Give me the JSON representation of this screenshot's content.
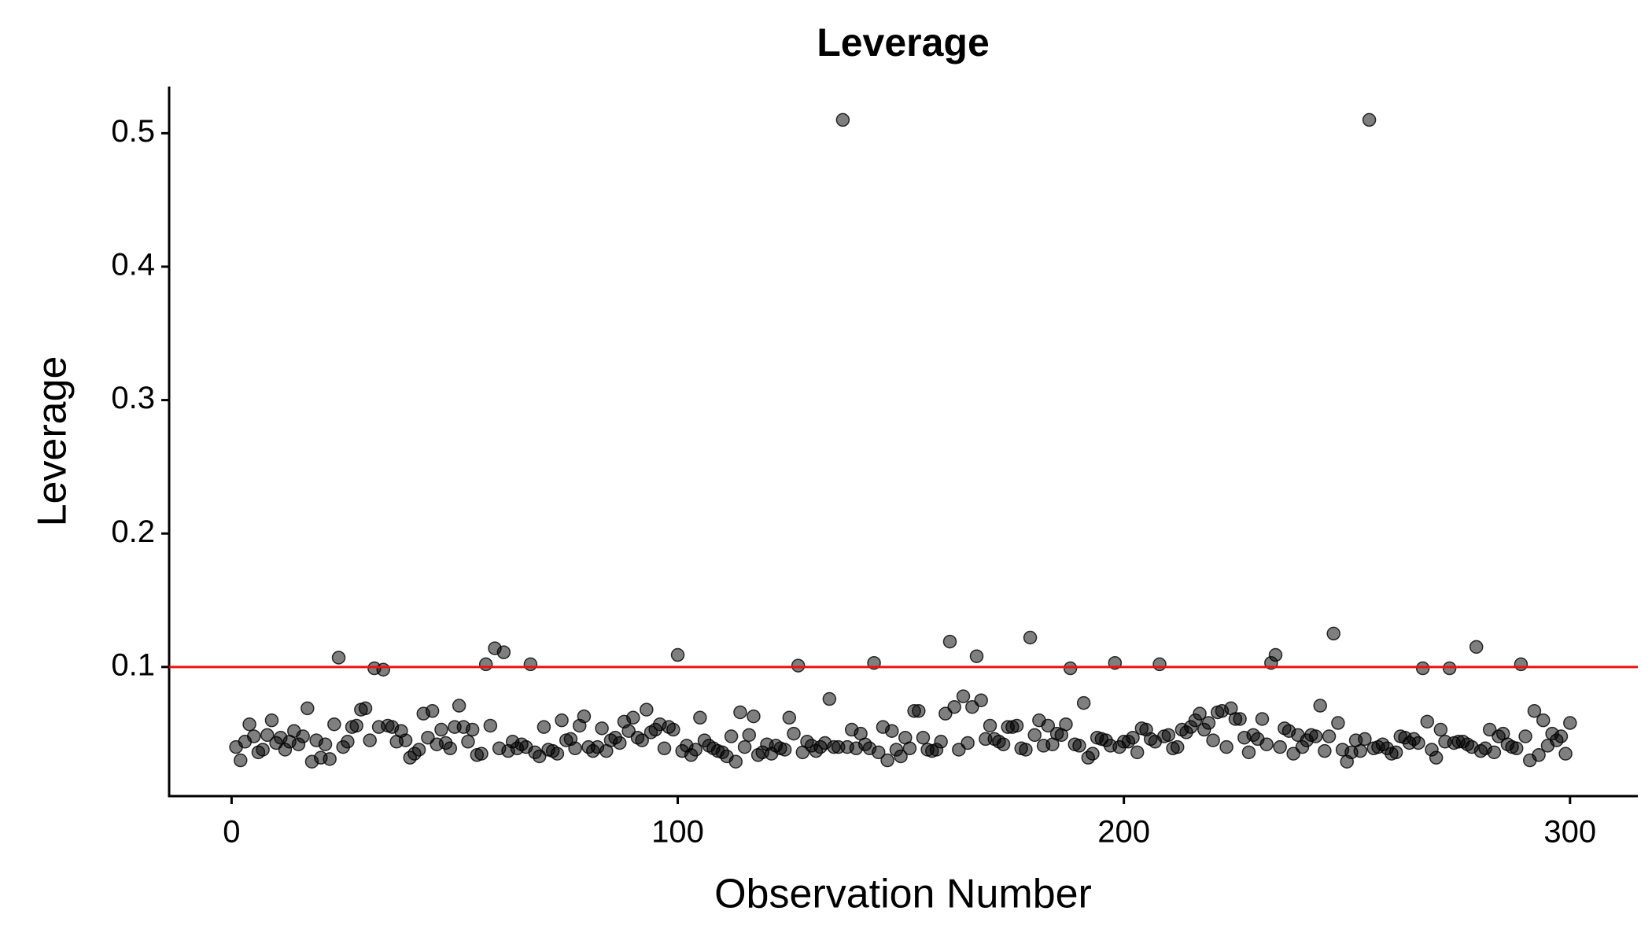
{
  "chart_data": {
    "type": "scatter",
    "title": "Leverage",
    "x_label": "Observation Number",
    "y_label": "Leverage",
    "xlim": [
      -14,
      315.2
    ],
    "ylim": [
      0.0032,
      0.535
    ],
    "xticks": [
      0,
      100,
      200,
      300
    ],
    "yticks": [
      0.1,
      0.2,
      0.3,
      0.4,
      0.5
    ],
    "point_color": "#000000",
    "point_opacity": 0.5,
    "hline": {
      "value": 0.1,
      "color": "#ee1111"
    },
    "x": [
      1,
      2,
      3,
      4,
      5,
      6,
      7,
      8,
      9,
      10,
      11,
      12,
      13,
      14,
      15,
      16,
      17,
      18,
      19,
      20,
      21,
      22,
      23,
      24,
      25,
      26,
      27,
      28,
      29,
      30,
      31,
      32,
      33,
      34,
      35,
      36,
      37,
      38,
      39,
      40,
      41,
      42,
      43,
      44,
      45,
      46,
      47,
      48,
      49,
      50,
      51,
      52,
      53,
      54,
      55,
      56,
      57,
      58,
      59,
      60,
      61,
      62,
      63,
      64,
      65,
      66,
      67,
      68,
      69,
      70,
      71,
      72,
      73,
      74,
      75,
      76,
      77,
      78,
      79,
      80,
      81,
      82,
      83,
      84,
      85,
      86,
      87,
      88,
      89,
      90,
      91,
      92,
      93,
      94,
      95,
      96,
      97,
      98,
      99,
      100,
      101,
      102,
      103,
      104,
      105,
      106,
      107,
      108,
      109,
      110,
      111,
      112,
      113,
      114,
      115,
      116,
      117,
      118,
      119,
      120,
      121,
      122,
      123,
      124,
      125,
      126,
      127,
      128,
      129,
      130,
      131,
      132,
      133,
      134,
      135,
      136,
      137,
      138,
      139,
      140,
      141,
      142,
      143,
      144,
      145,
      146,
      147,
      148,
      149,
      150,
      151,
      152,
      153,
      154,
      155,
      156,
      157,
      158,
      159,
      160,
      161,
      162,
      163,
      164,
      165,
      166,
      167,
      168,
      169,
      170,
      171,
      172,
      173,
      174,
      175,
      176,
      177,
      178,
      179,
      180,
      181,
      182,
      183,
      184,
      185,
      186,
      187,
      188,
      189,
      190,
      191,
      192,
      193,
      194,
      195,
      196,
      197,
      198,
      199,
      200,
      201,
      202,
      203,
      204,
      205,
      206,
      207,
      208,
      209,
      210,
      211,
      212,
      213,
      214,
      215,
      216,
      217,
      218,
      219,
      220,
      221,
      222,
      223,
      224,
      225,
      226,
      227,
      228,
      229,
      230,
      231,
      232,
      233,
      234,
      235,
      236,
      237,
      238,
      239,
      240,
      241,
      242,
      243,
      244,
      245,
      246,
      247,
      248,
      249,
      250,
      251,
      252,
      253,
      254,
      255,
      256,
      257,
      258,
      259,
      260,
      261,
      262,
      263,
      264,
      265,
      266,
      267,
      268,
      269,
      270,
      271,
      272,
      273,
      274,
      275,
      276,
      277,
      278,
      279,
      280,
      281,
      282,
      283,
      284,
      285,
      286,
      287,
      288,
      289,
      290,
      291,
      292,
      293,
      294,
      295,
      296,
      297,
      298,
      299,
      300
    ],
    "values": [
      0.04,
      0.03,
      0.044,
      0.057,
      0.048,
      0.036,
      0.038,
      0.049,
      0.06,
      0.043,
      0.047,
      0.038,
      0.044,
      0.052,
      0.042,
      0.048,
      0.069,
      0.029,
      0.045,
      0.032,
      0.042,
      0.031,
      0.057,
      0.107,
      0.04,
      0.044,
      0.055,
      0.056,
      0.068,
      0.069,
      0.045,
      0.099,
      0.055,
      0.098,
      0.056,
      0.055,
      0.044,
      0.052,
      0.045,
      0.032,
      0.035,
      0.038,
      0.065,
      0.047,
      0.067,
      0.042,
      0.053,
      0.043,
      0.039,
      0.055,
      0.071,
      0.055,
      0.044,
      0.053,
      0.034,
      0.035,
      0.102,
      0.056,
      0.114,
      0.039,
      0.111,
      0.037,
      0.044,
      0.039,
      0.042,
      0.04,
      0.102,
      0.036,
      0.033,
      0.055,
      0.038,
      0.037,
      0.035,
      0.06,
      0.045,
      0.046,
      0.039,
      0.056,
      0.063,
      0.04,
      0.037,
      0.04,
      0.054,
      0.037,
      0.045,
      0.047,
      0.043,
      0.059,
      0.052,
      0.062,
      0.047,
      0.045,
      0.068,
      0.051,
      0.053,
      0.057,
      0.039,
      0.055,
      0.053,
      0.109,
      0.037,
      0.041,
      0.034,
      0.038,
      0.062,
      0.045,
      0.041,
      0.039,
      0.037,
      0.036,
      0.033,
      0.048,
      0.029,
      0.066,
      0.04,
      0.049,
      0.063,
      0.034,
      0.036,
      0.042,
      0.035,
      0.041,
      0.039,
      0.038,
      0.062,
      0.05,
      0.101,
      0.036,
      0.044,
      0.041,
      0.037,
      0.04,
      0.043,
      0.076,
      0.04,
      0.04,
      0.51,
      0.04,
      0.053,
      0.039,
      0.05,
      0.042,
      0.039,
      0.103,
      0.036,
      0.055,
      0.03,
      0.052,
      0.038,
      0.033,
      0.047,
      0.039,
      0.067,
      0.067,
      0.047,
      0.038,
      0.037,
      0.038,
      0.044,
      0.065,
      0.119,
      0.07,
      0.038,
      0.078,
      0.043,
      0.07,
      0.108,
      0.075,
      0.046,
      0.056,
      0.046,
      0.044,
      0.042,
      0.055,
      0.055,
      0.056,
      0.039,
      0.038,
      0.122,
      0.049,
      0.06,
      0.041,
      0.056,
      0.042,
      0.05,
      0.049,
      0.057,
      0.099,
      0.042,
      0.041,
      0.073,
      0.032,
      0.035,
      0.047,
      0.046,
      0.045,
      0.041,
      0.103,
      0.04,
      0.044,
      0.044,
      0.047,
      0.036,
      0.054,
      0.053,
      0.046,
      0.044,
      0.102,
      0.048,
      0.049,
      0.039,
      0.04,
      0.053,
      0.051,
      0.055,
      0.06,
      0.065,
      0.053,
      0.058,
      0.045,
      0.066,
      0.067,
      0.04,
      0.069,
      0.061,
      0.061,
      0.047,
      0.036,
      0.049,
      0.046,
      0.061,
      0.042,
      0.103,
      0.109,
      0.04,
      0.054,
      0.052,
      0.035,
      0.049,
      0.04,
      0.045,
      0.049,
      0.048,
      0.071,
      0.037,
      0.048,
      0.125,
      0.058,
      0.038,
      0.029,
      0.036,
      0.045,
      0.037,
      0.046,
      0.51,
      0.039,
      0.04,
      0.042,
      0.039,
      0.035,
      0.036,
      0.048,
      0.047,
      0.043,
      0.046,
      0.043,
      0.099,
      0.059,
      0.038,
      0.032,
      0.053,
      0.044,
      0.099,
      0.043,
      0.044,
      0.044,
      0.042,
      0.04,
      0.115,
      0.037,
      0.039,
      0.053,
      0.036,
      0.048,
      0.05,
      0.042,
      0.04,
      0.039,
      0.102,
      0.048,
      0.03,
      0.067,
      0.034,
      0.06,
      0.041,
      0.05,
      0.045,
      0.048,
      0.035,
      0.058
    ]
  }
}
